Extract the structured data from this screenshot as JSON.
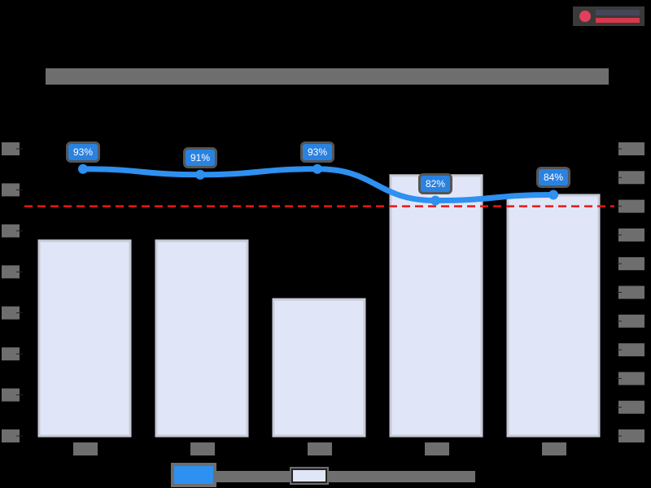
{
  "header": {
    "title": "",
    "logo": {
      "icon": "logo-emblem-icon",
      "line1": "",
      "line2": ""
    }
  },
  "legend": [
    {
      "label": "",
      "type": "line",
      "color": "#2e90f0"
    },
    {
      "label": "",
      "type": "bar",
      "color": "#e0e6f8"
    }
  ],
  "chart_data": {
    "type": "bar",
    "title": "",
    "xlabel": "",
    "ylabel": "",
    "categories": [
      "",
      "",
      "",
      "",
      ""
    ],
    "series": [
      {
        "name": "",
        "type": "bar",
        "axis": "left",
        "values": [
          4.76,
          4.76,
          3.33,
          6.35,
          5.87
        ],
        "note": "heights in left-axis tick units (left tick labels unreadable)"
      },
      {
        "name": "",
        "type": "line",
        "axis": "right",
        "values": [
          93,
          91,
          93,
          82,
          84
        ],
        "unit": "%",
        "data_labels": [
          "93%",
          "91%",
          "93%",
          "82%",
          "84%"
        ]
      }
    ],
    "reference_line": {
      "axis": "right",
      "value": 80,
      "style": "dashed",
      "color": "#e81818"
    },
    "left_axis": {
      "ticks": 8,
      "range": [
        0,
        7
      ],
      "tick_labels": [
        "",
        "",
        "",
        "",
        "",
        "",
        "",
        ""
      ]
    },
    "right_axis": {
      "ticks": 11,
      "range": [
        0,
        100
      ],
      "tick_labels": [
        "",
        "",
        "",
        "",
        "",
        "",
        "",
        "",
        "",
        "",
        ""
      ]
    },
    "grid": false,
    "legend_position": "bottom"
  },
  "colors": {
    "background": "#000000",
    "bar_fill": "#e0e6f8",
    "bar_border": "#c8cad4",
    "line": "#2e90f0",
    "label_bg": "#2a82e0",
    "reference": "#e81818"
  }
}
